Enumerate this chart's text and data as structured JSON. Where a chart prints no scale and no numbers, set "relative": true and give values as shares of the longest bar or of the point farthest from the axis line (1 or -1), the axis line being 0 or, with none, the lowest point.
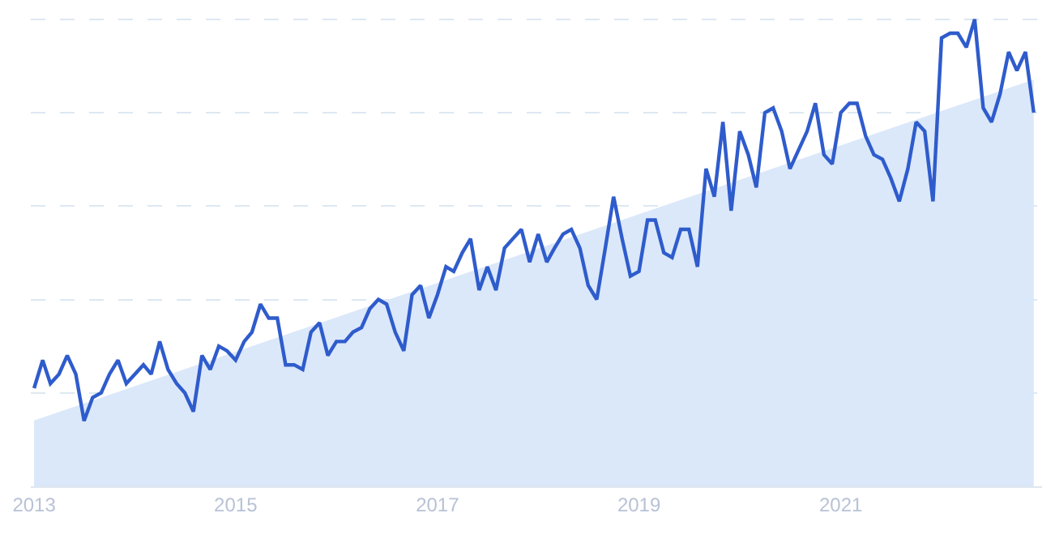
{
  "chart_data": {
    "type": "line",
    "relative": true,
    "grid": "y",
    "line_style": "solid",
    "marker": "none",
    "xlim": [
      "2012-12-20",
      "2022-12-31"
    ],
    "xticks": [
      "2013",
      "2015",
      "2017",
      "2019",
      "2021"
    ],
    "x": [
      "2013-01",
      "2013-02",
      "2013-03",
      "2013-04",
      "2013-05",
      "2013-06",
      "2013-07",
      "2013-08",
      "2013-09",
      "2013-10",
      "2013-11",
      "2013-12",
      "2014-01",
      "2014-02",
      "2014-03",
      "2014-04",
      "2014-05",
      "2014-06",
      "2014-07",
      "2014-08",
      "2014-09",
      "2014-10",
      "2014-11",
      "2014-12",
      "2015-01",
      "2015-02",
      "2015-03",
      "2015-04",
      "2015-05",
      "2015-06",
      "2015-07",
      "2015-08",
      "2015-09",
      "2015-10",
      "2015-11",
      "2015-12",
      "2016-01",
      "2016-02",
      "2016-03",
      "2016-04",
      "2016-05",
      "2016-06",
      "2016-07",
      "2016-08",
      "2016-09",
      "2016-10",
      "2016-11",
      "2016-12",
      "2017-01",
      "2017-02",
      "2017-03",
      "2017-04",
      "2017-05",
      "2017-06",
      "2017-07",
      "2017-08",
      "2017-09",
      "2017-10",
      "2017-11",
      "2017-12",
      "2018-01",
      "2018-02",
      "2018-03",
      "2018-04",
      "2018-05",
      "2018-06",
      "2018-07",
      "2018-08",
      "2018-09",
      "2018-10",
      "2018-11",
      "2018-12",
      "2019-01",
      "2019-02",
      "2019-03",
      "2019-04",
      "2019-05",
      "2019-06",
      "2019-07",
      "2019-08",
      "2019-09",
      "2019-10",
      "2019-11",
      "2019-12",
      "2020-01",
      "2020-02",
      "2020-03",
      "2020-04",
      "2020-05",
      "2020-06",
      "2020-07",
      "2020-08",
      "2020-09",
      "2020-10",
      "2020-11",
      "2020-12",
      "2021-01",
      "2021-02",
      "2021-03",
      "2021-04",
      "2021-05",
      "2021-06",
      "2021-07",
      "2021-08",
      "2021-09",
      "2021-10",
      "2021-11",
      "2021-12",
      "2022-01",
      "2022-02",
      "2022-03",
      "2022-04",
      "2022-05",
      "2022-06",
      "2022-07",
      "2022-08",
      "2022-09",
      "2022-10",
      "2022-11",
      "2022-12"
    ],
    "series": [
      {
        "type": "area",
        "color": "#dbe8fa",
        "x": [
          "2013-01",
          "2022-12"
        ],
        "values": [
          0.14,
          0.87
        ]
      },
      {
        "color": "#2f5ccc",
        "values": [
          0.21,
          0.27,
          0.22,
          0.24,
          0.28,
          0.24,
          0.14,
          0.19,
          0.2,
          0.24,
          0.27,
          0.22,
          0.24,
          0.26,
          0.24,
          0.31,
          0.25,
          0.22,
          0.2,
          0.16,
          0.28,
          0.25,
          0.3,
          0.29,
          0.27,
          0.31,
          0.33,
          0.39,
          0.36,
          0.36,
          0.26,
          0.26,
          0.25,
          0.33,
          0.35,
          0.28,
          0.31,
          0.31,
          0.33,
          0.34,
          0.38,
          0.4,
          0.39,
          0.33,
          0.29,
          0.41,
          0.43,
          0.36,
          0.41,
          0.47,
          0.46,
          0.5,
          0.53,
          0.42,
          0.47,
          0.42,
          0.51,
          0.53,
          0.55,
          0.48,
          0.54,
          0.48,
          0.51,
          0.54,
          0.55,
          0.51,
          0.43,
          0.4,
          0.51,
          0.62,
          0.53,
          0.45,
          0.46,
          0.57,
          0.57,
          0.5,
          0.49,
          0.55,
          0.55,
          0.47,
          0.68,
          0.62,
          0.78,
          0.59,
          0.76,
          0.71,
          0.64,
          0.8,
          0.81,
          0.76,
          0.68,
          0.72,
          0.76,
          0.82,
          0.71,
          0.69,
          0.8,
          0.82,
          0.82,
          0.75,
          0.71,
          0.7,
          0.66,
          0.61,
          0.68,
          0.78,
          0.76,
          0.61,
          0.96,
          0.97,
          0.97,
          0.94,
          1.0,
          0.81,
          0.78,
          0.84,
          0.93,
          0.89,
          0.93,
          0.8
        ]
      }
    ]
  }
}
